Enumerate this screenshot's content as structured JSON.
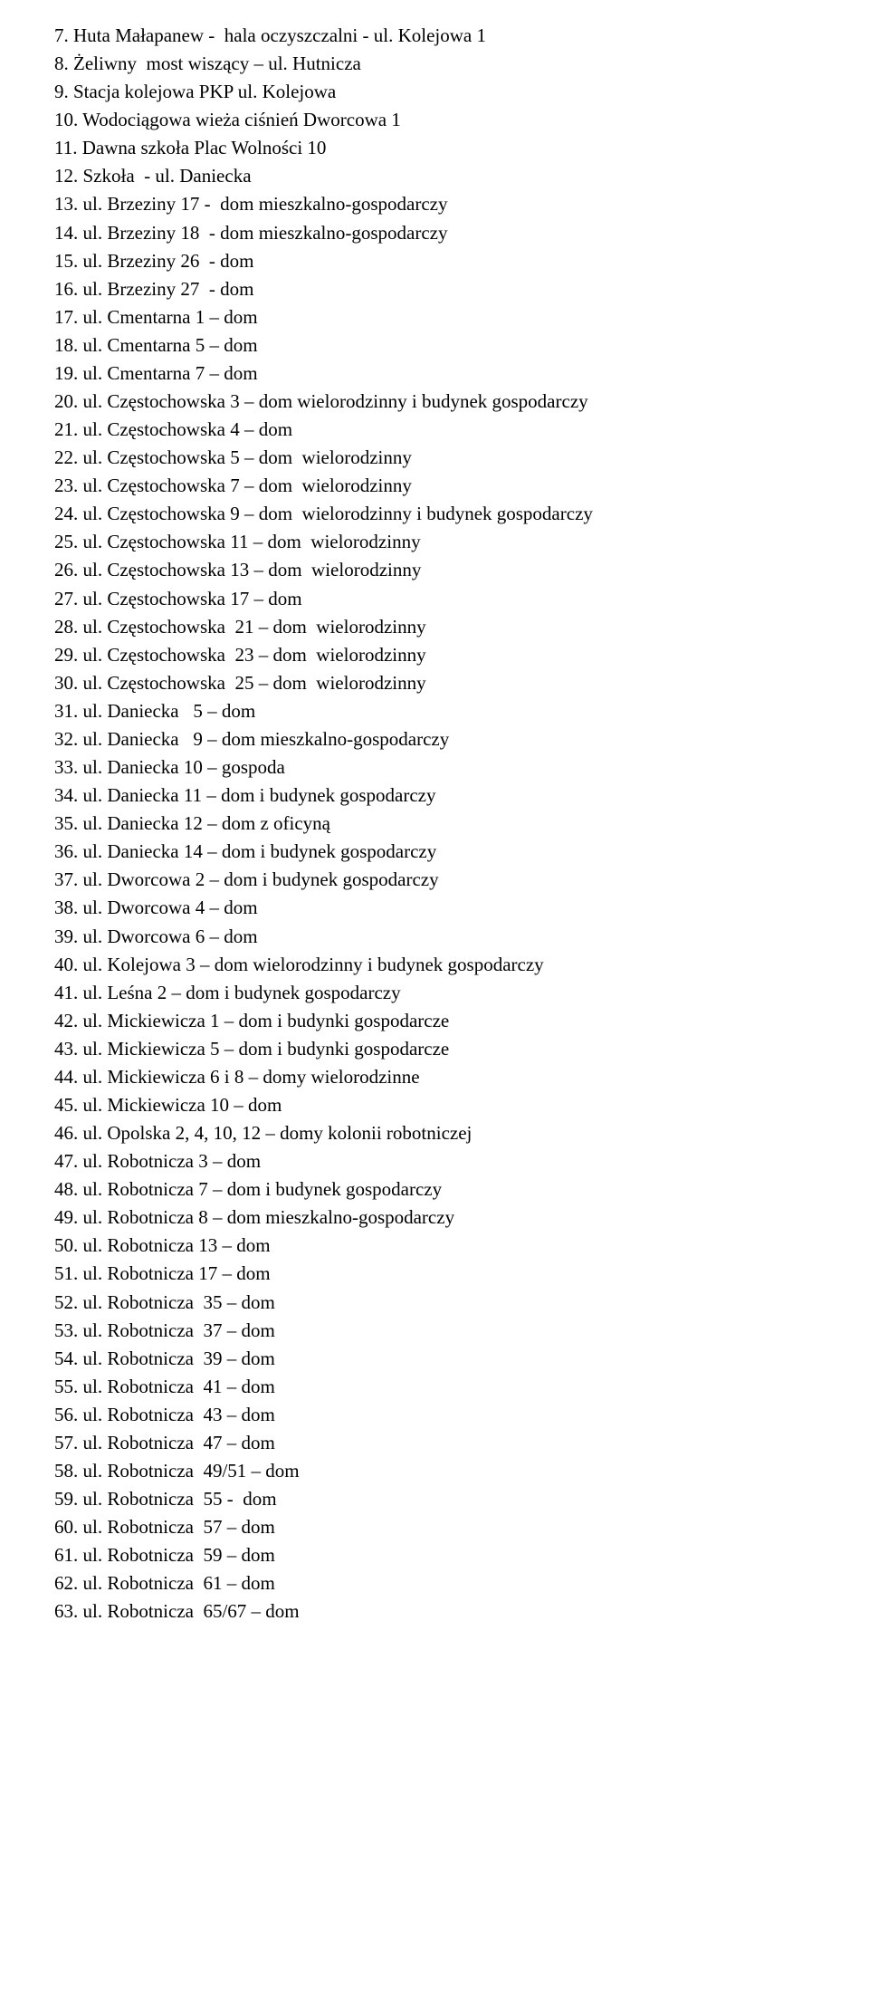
{
  "list": {
    "start": 7,
    "items": [
      "Huta Małapanew -  hala oczyszczalni - ul. Kolejowa 1",
      "Żeliwny  most wiszący – ul. Hutnicza",
      "Stacja kolejowa PKP ul. Kolejowa",
      "Wodociągowa wieża ciśnień Dworcowa 1",
      "Dawna szkoła Plac Wolności 10",
      "Szkoła  - ul. Daniecka",
      "ul. Brzeziny 17 -  dom mieszkalno-gospodarczy",
      "ul. Brzeziny 18  - dom mieszkalno-gospodarczy",
      "ul. Brzeziny 26  - dom",
      "ul. Brzeziny 27  - dom",
      "ul. Cmentarna 1 – dom",
      "ul. Cmentarna 5 – dom",
      "ul. Cmentarna 7 – dom",
      "ul. Częstochowska 3 – dom wielorodzinny i budynek gospodarczy",
      "ul. Częstochowska 4 – dom",
      "ul. Częstochowska 5 – dom  wielorodzinny",
      "ul. Częstochowska 7 – dom  wielorodzinny",
      "ul. Częstochowska 9 – dom  wielorodzinny i budynek gospodarczy",
      "ul. Częstochowska 11 – dom  wielorodzinny",
      "ul. Częstochowska 13 – dom  wielorodzinny",
      "ul. Częstochowska 17 – dom",
      "ul. Częstochowska  21 – dom  wielorodzinny",
      "ul. Częstochowska  23 – dom  wielorodzinny",
      "ul. Częstochowska  25 – dom  wielorodzinny",
      "ul. Daniecka   5 – dom",
      "ul. Daniecka   9 – dom mieszkalno-gospodarczy",
      "ul. Daniecka 10 – gospoda",
      "ul. Daniecka 11 – dom i budynek gospodarczy",
      "ul. Daniecka 12 – dom z oficyną",
      "ul. Daniecka 14 – dom i budynek gospodarczy",
      "ul. Dworcowa 2 – dom i budynek gospodarczy",
      "ul. Dworcowa 4 – dom",
      "ul. Dworcowa 6 – dom",
      "ul. Kolejowa 3 – dom wielorodzinny i budynek gospodarczy",
      "ul. Leśna 2 – dom i budynek gospodarczy",
      "ul. Mickiewicza 1 – dom i budynki gospodarcze",
      "ul. Mickiewicza 5 – dom i budynki gospodarcze",
      "ul. Mickiewicza 6 i 8 – domy wielorodzinne",
      "ul. Mickiewicza 10 – dom",
      "ul. Opolska 2, 4, 10, 12 – domy kolonii robotniczej",
      "ul. Robotnicza 3 – dom",
      "ul. Robotnicza 7 – dom i budynek gospodarczy",
      "ul. Robotnicza 8 – dom mieszkalno-gospodarczy",
      "ul. Robotnicza 13 – dom",
      "ul. Robotnicza 17 – dom",
      "ul. Robotnicza  35 – dom",
      "ul. Robotnicza  37 – dom",
      "ul. Robotnicza  39 – dom",
      "ul. Robotnicza  41 – dom",
      "ul. Robotnicza  43 – dom",
      "ul. Robotnicza  47 – dom",
      "ul. Robotnicza  49/51 – dom",
      "ul. Robotnicza  55 -  dom",
      "ul. Robotnicza  57 – dom",
      "ul. Robotnicza  59 – dom",
      "ul. Robotnicza  61 – dom",
      "ul. Robotnicza  65/67 – dom"
    ]
  }
}
